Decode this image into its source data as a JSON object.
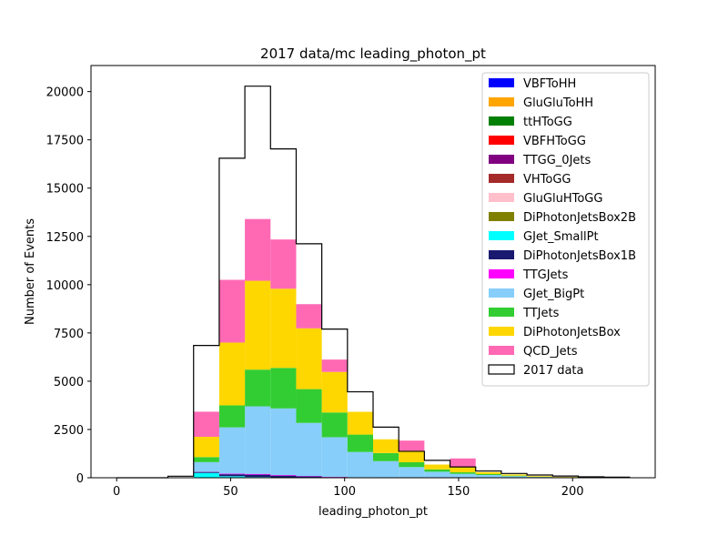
{
  "chart_data": {
    "type": "bar",
    "title": "2017 data/mc leading_photon_pt",
    "xlabel": "leading_photon_pt",
    "ylabel": "Number of Events",
    "xlim": [
      -11.25,
      236.25
    ],
    "ylim": [
      0,
      21350
    ],
    "xticks": [
      0,
      50,
      100,
      150,
      200
    ],
    "yticks": [
      0,
      2500,
      5000,
      7500,
      10000,
      12500,
      15000,
      17500,
      20000
    ],
    "bin_edges": [
      0,
      11.25,
      22.5,
      33.75,
      45,
      56.25,
      67.5,
      78.75,
      90,
      101.25,
      112.5,
      123.75,
      135,
      146.25,
      157.5,
      168.75,
      180,
      191.25,
      202.5,
      213.75,
      225
    ],
    "grid": false,
    "legend_position": "upper right",
    "series": [
      {
        "name": "VBFToHH",
        "color": "#0000ff",
        "values": [
          0,
          0,
          0,
          0,
          0,
          0,
          0,
          0,
          0,
          0,
          0,
          0,
          0,
          0,
          0,
          0,
          0,
          0,
          0,
          0
        ]
      },
      {
        "name": "GluGluToHH",
        "color": "#ffa500",
        "values": [
          0,
          0,
          0,
          0,
          0,
          0,
          0,
          0,
          0,
          0,
          0,
          0,
          0,
          0,
          0,
          0,
          0,
          0,
          0,
          0
        ]
      },
      {
        "name": "ttHToGG",
        "color": "#008000",
        "values": [
          0,
          0,
          0,
          0,
          0,
          0,
          0,
          0,
          0,
          0,
          0,
          0,
          0,
          0,
          0,
          0,
          0,
          0,
          0,
          0
        ]
      },
      {
        "name": "VBFHToGG",
        "color": "#ff0000",
        "values": [
          0,
          0,
          0,
          0,
          0,
          0,
          0,
          0,
          0,
          0,
          0,
          0,
          0,
          0,
          0,
          0,
          0,
          0,
          0,
          0
        ]
      },
      {
        "name": "TTGG_0Jets",
        "color": "#800080",
        "values": [
          0,
          0,
          0,
          0,
          0,
          0,
          0,
          0,
          0,
          0,
          0,
          0,
          0,
          0,
          0,
          0,
          0,
          0,
          0,
          0
        ]
      },
      {
        "name": "VHToGG",
        "color": "#a52a2a",
        "values": [
          0,
          0,
          0,
          0,
          0,
          0,
          0,
          0,
          0,
          0,
          0,
          0,
          0,
          0,
          0,
          0,
          0,
          0,
          0,
          0
        ]
      },
      {
        "name": "GluGluHToGG",
        "color": "#ffc0cb",
        "values": [
          0,
          0,
          0,
          0,
          0,
          0,
          0,
          0,
          0,
          0,
          0,
          0,
          0,
          0,
          0,
          0,
          0,
          0,
          0,
          0
        ]
      },
      {
        "name": "DiPhotonJetsBox2B",
        "color": "#808000",
        "values": [
          0,
          0,
          0,
          0,
          0,
          0,
          0,
          0,
          0,
          0,
          0,
          0,
          0,
          0,
          0,
          0,
          0,
          0,
          0,
          0
        ]
      },
      {
        "name": "GJet_SmallPt",
        "color": "#00ffff",
        "values": [
          0,
          0,
          0,
          250,
          80,
          40,
          20,
          10,
          5,
          0,
          0,
          0,
          0,
          0,
          0,
          0,
          0,
          0,
          0,
          0
        ]
      },
      {
        "name": "DiPhotonJetsBox1B",
        "color": "#191970",
        "values": [
          0,
          0,
          0,
          50,
          100,
          120,
          90,
          60,
          30,
          15,
          5,
          0,
          0,
          0,
          0,
          0,
          0,
          0,
          0,
          0
        ]
      },
      {
        "name": "TTGJets",
        "color": "#ff00ff",
        "values": [
          0,
          0,
          0,
          10,
          30,
          40,
          30,
          20,
          15,
          10,
          5,
          3,
          2,
          1,
          0,
          0,
          0,
          0,
          0,
          0
        ]
      },
      {
        "name": "GJet_BigPt",
        "color": "#87cefa",
        "values": [
          0,
          0,
          0,
          500,
          2400,
          3500,
          3450,
          2750,
          2050,
          1310,
          850,
          550,
          310,
          200,
          140,
          80,
          40,
          20,
          10,
          5
        ]
      },
      {
        "name": "TTJets",
        "color": "#32cd32",
        "values": [
          0,
          0,
          0,
          260,
          1140,
          1900,
          2100,
          1750,
          1280,
          900,
          420,
          250,
          120,
          80,
          50,
          30,
          10,
          5,
          2,
          0
        ]
      },
      {
        "name": "DiPhotonJetsBox",
        "color": "#ffd700",
        "values": [
          0,
          0,
          0,
          1050,
          3250,
          4600,
          4100,
          3150,
          2100,
          1180,
          710,
          600,
          250,
          280,
          100,
          60,
          35,
          15,
          5,
          2
        ]
      },
      {
        "name": "QCD_Jets",
        "color": "#ff69b4",
        "values": [
          0,
          0,
          0,
          1300,
          3250,
          3200,
          2550,
          1250,
          640,
          0,
          0,
          520,
          0,
          440,
          0,
          0,
          0,
          0,
          0,
          0
        ]
      }
    ],
    "data_series": {
      "name": "2017 data",
      "color": "#000000",
      "values": [
        0,
        0,
        80,
        6850,
        16550,
        20280,
        17030,
        12120,
        7700,
        4450,
        2620,
        1370,
        900,
        560,
        350,
        220,
        140,
        90,
        50,
        30
      ]
    }
  }
}
